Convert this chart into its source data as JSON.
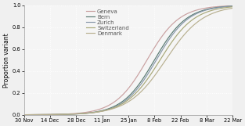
{
  "title": "",
  "ylabel": "Proportion variant",
  "xlabel": "",
  "xlim_days": [
    0,
    112
  ],
  "ylim": [
    0.0,
    1.0
  ],
  "yticks": [
    0.0,
    0.2,
    0.4,
    0.6,
    0.8,
    1.0
  ],
  "xtick_labels": [
    "30 Nov",
    "14 Dec",
    "28 Dec",
    "11 Jan",
    "25 Jan",
    "8 Feb",
    "22 Feb",
    "8 Mar",
    "22 Mar"
  ],
  "xtick_positions": [
    0,
    14,
    28,
    42,
    56,
    70,
    84,
    98,
    112
  ],
  "series": [
    {
      "name": "Geneva",
      "color": "#c9a0a0",
      "midpoint": 66,
      "growth_rate": 0.115
    },
    {
      "name": "Bern",
      "color": "#5a7a72",
      "midpoint": 70,
      "growth_rate": 0.115
    },
    {
      "name": "Zurich",
      "color": "#8898aa",
      "midpoint": 71,
      "growth_rate": 0.115
    },
    {
      "name": "Switzerland",
      "color": "#a8a878",
      "midpoint": 73,
      "growth_rate": 0.108
    },
    {
      "name": "Denmark",
      "color": "#b8b090",
      "midpoint": 76,
      "growth_rate": 0.1
    }
  ],
  "background_color": "#f0f0f0",
  "plot_bg_color": "#f5f5f5",
  "grid_color": "#ffffff",
  "grid_linestyle": "dotted",
  "legend_fontsize": 5.0,
  "tick_fontsize": 4.8,
  "ylabel_fontsize": 5.5,
  "line_width": 0.85,
  "spine_color": "#999999"
}
